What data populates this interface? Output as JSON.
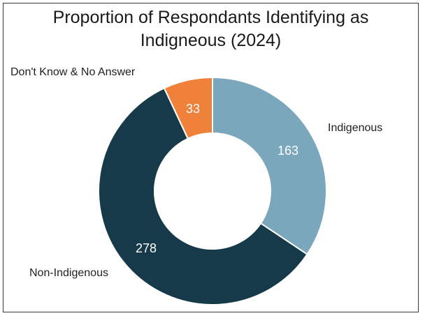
{
  "chart_data": {
    "type": "pie",
    "title_line1": "Proportion of Respondants Identifying as",
    "title_line2": "Indigneous (2024)",
    "categories": [
      "Indigenous",
      "Non-Indigenous",
      "Don't Know & No Answer"
    ],
    "values": [
      163,
      278,
      33
    ],
    "value_labels": [
      "163",
      "278",
      "33"
    ],
    "colors": [
      "#7aa7bb",
      "#163a49",
      "#f0813a"
    ],
    "donut": true,
    "start_angle_deg": 0,
    "direction": "clockwise",
    "legend": "none"
  }
}
